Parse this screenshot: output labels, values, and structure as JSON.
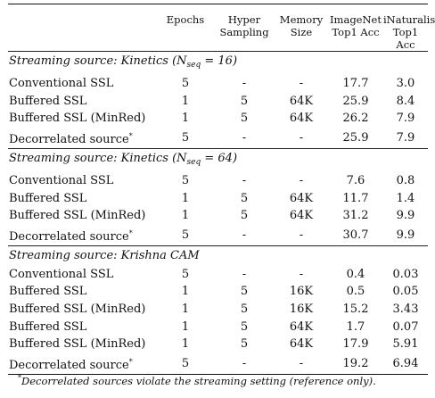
{
  "headers": {
    "epochs": "Epochs",
    "hyper_sampling": [
      "Hyper",
      "Sampling"
    ],
    "memory_size": [
      "Memory",
      "Size"
    ],
    "imagenet": [
      "ImageNet",
      "Top1 Acc"
    ],
    "inaturalist": [
      "iNaturalist",
      "Top1 Acc"
    ]
  },
  "sections": [
    {
      "title_prefix": "Streaming source: Kinetics (",
      "n_symbol": "N",
      "n_sub": "seq",
      "n_value": " = 16)",
      "rows": [
        {
          "method": "Conventional SSL",
          "mark": "",
          "epochs": "5",
          "hyper": "-",
          "memory": "-",
          "imagenet": "17.7",
          "inat": "3.0"
        },
        {
          "method": "Buffered SSL",
          "mark": "",
          "epochs": "1",
          "hyper": "5",
          "memory": "64K",
          "imagenet": "25.9",
          "inat": "8.4"
        },
        {
          "method": "Buffered SSL (MinRed)",
          "mark": "",
          "epochs": "1",
          "hyper": "5",
          "memory": "64K",
          "imagenet": "26.2",
          "inat": "7.9"
        },
        {
          "method": "Decorrelated source",
          "mark": "*",
          "epochs": "5",
          "hyper": "-",
          "memory": "-",
          "imagenet": "25.9",
          "inat": "7.9"
        }
      ]
    },
    {
      "title_prefix": "Streaming source: Kinetics (",
      "n_symbol": "N",
      "n_sub": "seq",
      "n_value": " = 64)",
      "rows": [
        {
          "method": "Conventional SSL",
          "mark": "",
          "epochs": "5",
          "hyper": "-",
          "memory": "-",
          "imagenet": "7.6",
          "inat": "0.8"
        },
        {
          "method": "Buffered SSL",
          "mark": "",
          "epochs": "1",
          "hyper": "5",
          "memory": "64K",
          "imagenet": "11.7",
          "inat": "1.4"
        },
        {
          "method": "Buffered SSL (MinRed)",
          "mark": "",
          "epochs": "1",
          "hyper": "5",
          "memory": "64K",
          "imagenet": "31.2",
          "inat": "9.9"
        },
        {
          "method": "Decorrelated source",
          "mark": "*",
          "epochs": "5",
          "hyper": "-",
          "memory": "-",
          "imagenet": "30.7",
          "inat": "9.9"
        }
      ]
    },
    {
      "title_prefix": "Streaming source: Krishna CAM",
      "n_symbol": "",
      "n_sub": "",
      "n_value": "",
      "rows": [
        {
          "method": "Conventional SSL",
          "mark": "",
          "epochs": "5",
          "hyper": "-",
          "memory": "-",
          "imagenet": "0.4",
          "inat": "0.03"
        },
        {
          "method": "Buffered SSL",
          "mark": "",
          "epochs": "1",
          "hyper": "5",
          "memory": "16K",
          "imagenet": "0.5",
          "inat": "0.05"
        },
        {
          "method": "Buffered SSL (MinRed)",
          "mark": "",
          "epochs": "1",
          "hyper": "5",
          "memory": "16K",
          "imagenet": "15.2",
          "inat": "3.43"
        },
        {
          "method": "Buffered SSL",
          "mark": "",
          "epochs": "1",
          "hyper": "5",
          "memory": "64K",
          "imagenet": "1.7",
          "inat": "0.07"
        },
        {
          "method": "Buffered SSL (MinRed)",
          "mark": "",
          "epochs": "1",
          "hyper": "5",
          "memory": "64K",
          "imagenet": "17.9",
          "inat": "5.91"
        },
        {
          "method": "Decorrelated source",
          "mark": "*",
          "epochs": "5",
          "hyper": "-",
          "memory": "-",
          "imagenet": "19.2",
          "inat": "6.94"
        }
      ]
    }
  ],
  "footnote": {
    "mark": "*",
    "text": "Decorrelated sources violate the streaming setting (reference only)."
  }
}
